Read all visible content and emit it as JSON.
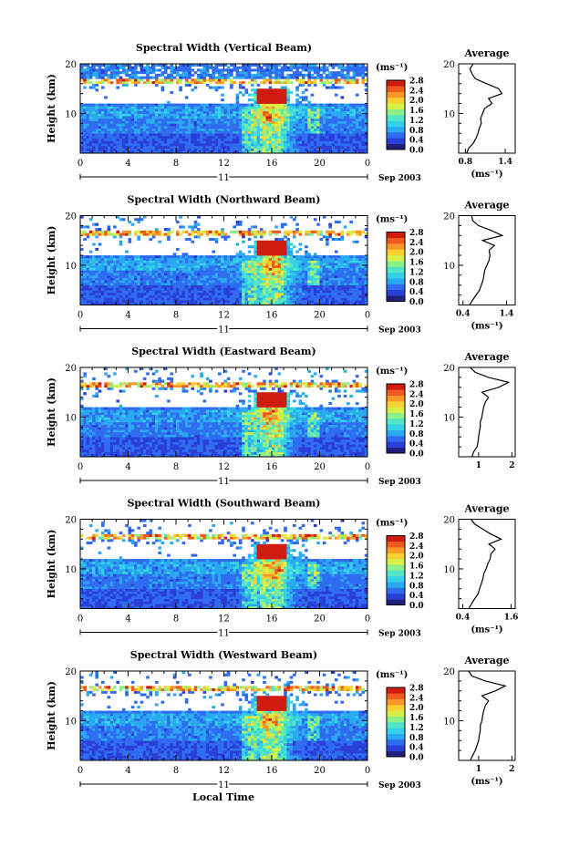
{
  "figure": {
    "xlabel": "Local Time",
    "date_label": "Sep 2003",
    "day_label": "11",
    "ylabel": "Height (km)",
    "cbar_unit": "(ms⁻¹)",
    "avg_title": "Average",
    "avg_xlabel": "(ms⁻¹)"
  },
  "colormap": [
    "#20207a",
    "#2a3fd8",
    "#2f6cf0",
    "#2aa8f0",
    "#34d2e6",
    "#52e6c6",
    "#8cf08a",
    "#d6f048",
    "#f8d030",
    "#f89828",
    "#f05a1e",
    "#d01c10"
  ],
  "chart_data": [
    {
      "type": "heatmap",
      "title": "Spectral Width (Vertical Beam)",
      "xlabel": "",
      "ylabel": "Height (km)",
      "x_ticks": [
        "0",
        "4",
        "8",
        "12",
        "16",
        "20",
        "0"
      ],
      "xlim": [
        0,
        24
      ],
      "ylim": [
        2,
        20
      ],
      "y_ticks": [
        "10",
        "20"
      ],
      "colorbar": {
        "label": "(ms⁻¹)",
        "ticks": [
          "2.8",
          "2.4",
          "2.0",
          "1.6",
          "1.2",
          "0.8",
          "0.4",
          "0.0"
        ],
        "range": [
          0,
          2.8
        ]
      },
      "average_profile": {
        "title": "Average",
        "xlabel": "(ms⁻¹)",
        "x_ticks": [
          "0.8",
          "1.4"
        ],
        "xlim": [
          0.7,
          1.55
        ],
        "y_ticks": [
          "10",
          "20"
        ],
        "ylim": [
          2,
          20
        ],
        "height_km": [
          2,
          3,
          4,
          5,
          6,
          7,
          8,
          9,
          10,
          11,
          12,
          13,
          14,
          15,
          16,
          17,
          18,
          19,
          20
        ],
        "width_ms": [
          0.82,
          0.85,
          0.92,
          0.96,
          0.99,
          1.01,
          1.04,
          1.03,
          1.06,
          1.09,
          1.2,
          1.15,
          1.35,
          1.3,
          1.12,
          0.95,
          0.9,
          0.87,
          0.92
        ]
      }
    },
    {
      "type": "heatmap",
      "title": "Spectral Width (Northward Beam)",
      "xlabel": "",
      "ylabel": "Height (km)",
      "x_ticks": [
        "0",
        "4",
        "8",
        "12",
        "16",
        "20",
        "0"
      ],
      "xlim": [
        0,
        24
      ],
      "ylim": [
        2,
        20
      ],
      "y_ticks": [
        "10",
        "20"
      ],
      "colorbar": {
        "label": "(ms⁻¹)",
        "ticks": [
          "2.8",
          "2.4",
          "2.0",
          "1.6",
          "1.2",
          "0.8",
          "0.4",
          "0.0"
        ],
        "range": [
          0,
          2.8
        ]
      },
      "average_profile": {
        "title": "Average",
        "xlabel": "(ms⁻¹)",
        "x_ticks": [
          "0.4",
          "1.4"
        ],
        "xlim": [
          0.3,
          1.6
        ],
        "y_ticks": [
          "10",
          "20"
        ],
        "ylim": [
          2,
          20
        ],
        "height_km": [
          2,
          3,
          4,
          5,
          6,
          7,
          8,
          9,
          10,
          11,
          12,
          13,
          14,
          15,
          16,
          17,
          18,
          19,
          20
        ],
        "width_ms": [
          0.55,
          0.62,
          0.7,
          0.78,
          0.82,
          0.86,
          0.88,
          0.9,
          0.95,
          1.0,
          1.02,
          1.0,
          1.12,
          0.85,
          1.3,
          1.05,
          0.75,
          0.62,
          0.6
        ]
      }
    },
    {
      "type": "heatmap",
      "title": "Spectral Width (Eastward Beam)",
      "xlabel": "",
      "ylabel": "Height (km)",
      "x_ticks": [
        "0",
        "4",
        "8",
        "12",
        "16",
        "20",
        "0"
      ],
      "xlim": [
        0,
        24
      ],
      "ylim": [
        2,
        20
      ],
      "y_ticks": [
        "10",
        "20"
      ],
      "colorbar": {
        "label": "(ms⁻¹)",
        "ticks": [
          "2.8",
          "2.4",
          "2.0",
          "1.6",
          "1.2",
          "0.8",
          "0.4",
          "0.0"
        ],
        "range": [
          0,
          2.8
        ]
      },
      "average_profile": {
        "title": "Average",
        "xlabel": "",
        "x_ticks": [
          "1",
          "2"
        ],
        "xlim": [
          0.4,
          2.1
        ],
        "y_ticks": [
          "10",
          "20"
        ],
        "ylim": [
          2,
          20
        ],
        "height_km": [
          2,
          3,
          4,
          5,
          6,
          7,
          8,
          9,
          10,
          11,
          12,
          13,
          14,
          15,
          16,
          17,
          18,
          19,
          20
        ],
        "width_ms": [
          0.8,
          0.85,
          0.95,
          0.98,
          1.0,
          1.02,
          1.05,
          1.05,
          1.1,
          1.12,
          1.15,
          1.2,
          1.3,
          1.1,
          1.6,
          1.9,
          1.3,
          0.9,
          0.75
        ]
      }
    },
    {
      "type": "heatmap",
      "title": "Spectral Width (Southward Beam)",
      "xlabel": "",
      "ylabel": "Height (km)",
      "x_ticks": [
        "0",
        "4",
        "8",
        "12",
        "16",
        "20",
        "0"
      ],
      "xlim": [
        0,
        24
      ],
      "ylim": [
        2,
        20
      ],
      "y_ticks": [
        "10",
        "20"
      ],
      "colorbar": {
        "label": "(ms⁻¹)",
        "ticks": [
          "2.8",
          "2.4",
          "2.0",
          "1.6",
          "1.2",
          "0.8",
          "0.4",
          "0.0"
        ],
        "range": [
          0,
          2.8
        ]
      },
      "average_profile": {
        "title": "Average",
        "xlabel": "(ms⁻¹)",
        "x_ticks": [
          "0.4",
          "1.6"
        ],
        "xlim": [
          0.3,
          1.7
        ],
        "y_ticks": [
          "10",
          "20"
        ],
        "ylim": [
          2,
          20
        ],
        "height_km": [
          2,
          3,
          4,
          5,
          6,
          7,
          8,
          9,
          10,
          11,
          12,
          13,
          14,
          15,
          16,
          17,
          18,
          19,
          20
        ],
        "width_ms": [
          0.55,
          0.62,
          0.7,
          0.78,
          0.82,
          0.86,
          0.9,
          0.92,
          0.98,
          1.02,
          1.08,
          1.1,
          1.2,
          1.05,
          1.35,
          1.1,
          0.9,
          0.7,
          0.6
        ]
      }
    },
    {
      "type": "heatmap",
      "title": "Spectral Width (Westward Beam)",
      "xlabel": "Local Time",
      "ylabel": "Height (km)",
      "x_ticks": [
        "0",
        "4",
        "8",
        "12",
        "16",
        "20",
        "0"
      ],
      "xlim": [
        0,
        24
      ],
      "ylim": [
        2,
        20
      ],
      "y_ticks": [
        "10",
        "20"
      ],
      "colorbar": {
        "label": "(ms⁻¹)",
        "ticks": [
          "2.8",
          "2.4",
          "2.0",
          "1.6",
          "1.2",
          "0.8",
          "0.4",
          "0.0"
        ],
        "range": [
          0,
          2.8
        ]
      },
      "average_profile": {
        "title": "Average",
        "xlabel": "(ms⁻¹)",
        "x_ticks": [
          "1",
          "2"
        ],
        "xlim": [
          0.4,
          2.1
        ],
        "y_ticks": [
          "10",
          "20"
        ],
        "ylim": [
          2,
          20
        ],
        "height_km": [
          2,
          3,
          4,
          5,
          6,
          7,
          8,
          9,
          10,
          11,
          12,
          13,
          14,
          15,
          16,
          17,
          18,
          19,
          20
        ],
        "width_ms": [
          0.75,
          0.82,
          0.9,
          0.95,
          1.0,
          1.02,
          1.05,
          1.05,
          1.1,
          1.12,
          1.15,
          1.2,
          1.3,
          1.1,
          1.5,
          1.8,
          1.2,
          0.8,
          0.7
        ]
      }
    }
  ]
}
